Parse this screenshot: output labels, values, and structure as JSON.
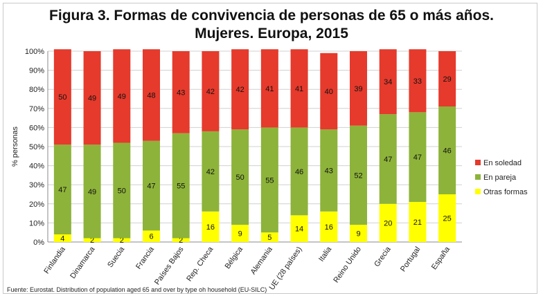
{
  "title_line1": "Figura 3. Formas de convivencia de personas de 65 o más años.",
  "title_line2": "Mujeres. Europa, 2015",
  "source": "Fuente: Eurostat. Distribution of population aged 65 and over by type oh household (EU-SILC)",
  "chart_data": {
    "type": "bar",
    "stacked": true,
    "title": "Figura 3. Formas de convivencia de personas de 65 o más años. Mujeres. Europa, 2015",
    "xlabel": "",
    "ylabel": "% personas",
    "ylim": [
      0,
      100
    ],
    "yticks": [
      "0%",
      "10%",
      "20%",
      "30%",
      "40%",
      "50%",
      "60%",
      "70%",
      "80%",
      "90%",
      "100%"
    ],
    "grid": true,
    "legend_position": "right",
    "categories": [
      "Finlandia",
      "Dinamarca",
      "Suecia",
      "Francia",
      "Países Bajos",
      "Rep. Checa",
      "Bélgica",
      "Alemania",
      "UE (28 países)",
      "Italia",
      "Reino Unido",
      "Grecia",
      "Portugal",
      "España"
    ],
    "series": [
      {
        "name": "Otras formas",
        "color": "#ffff00",
        "values": [
          4,
          2,
          2,
          6,
          2,
          16,
          9,
          5,
          14,
          16,
          9,
          20,
          21,
          25
        ]
      },
      {
        "name": "En pareja",
        "color": "#8db33a",
        "values": [
          47,
          49,
          50,
          47,
          55,
          42,
          50,
          55,
          46,
          43,
          52,
          47,
          47,
          46
        ]
      },
      {
        "name": "En soledad",
        "color": "#e53a2c",
        "values": [
          50,
          49,
          49,
          48,
          43,
          42,
          42,
          41,
          41,
          40,
          39,
          34,
          33,
          29
        ]
      }
    ],
    "legend_order": [
      "En soledad",
      "En pareja",
      "Otras formas"
    ]
  }
}
